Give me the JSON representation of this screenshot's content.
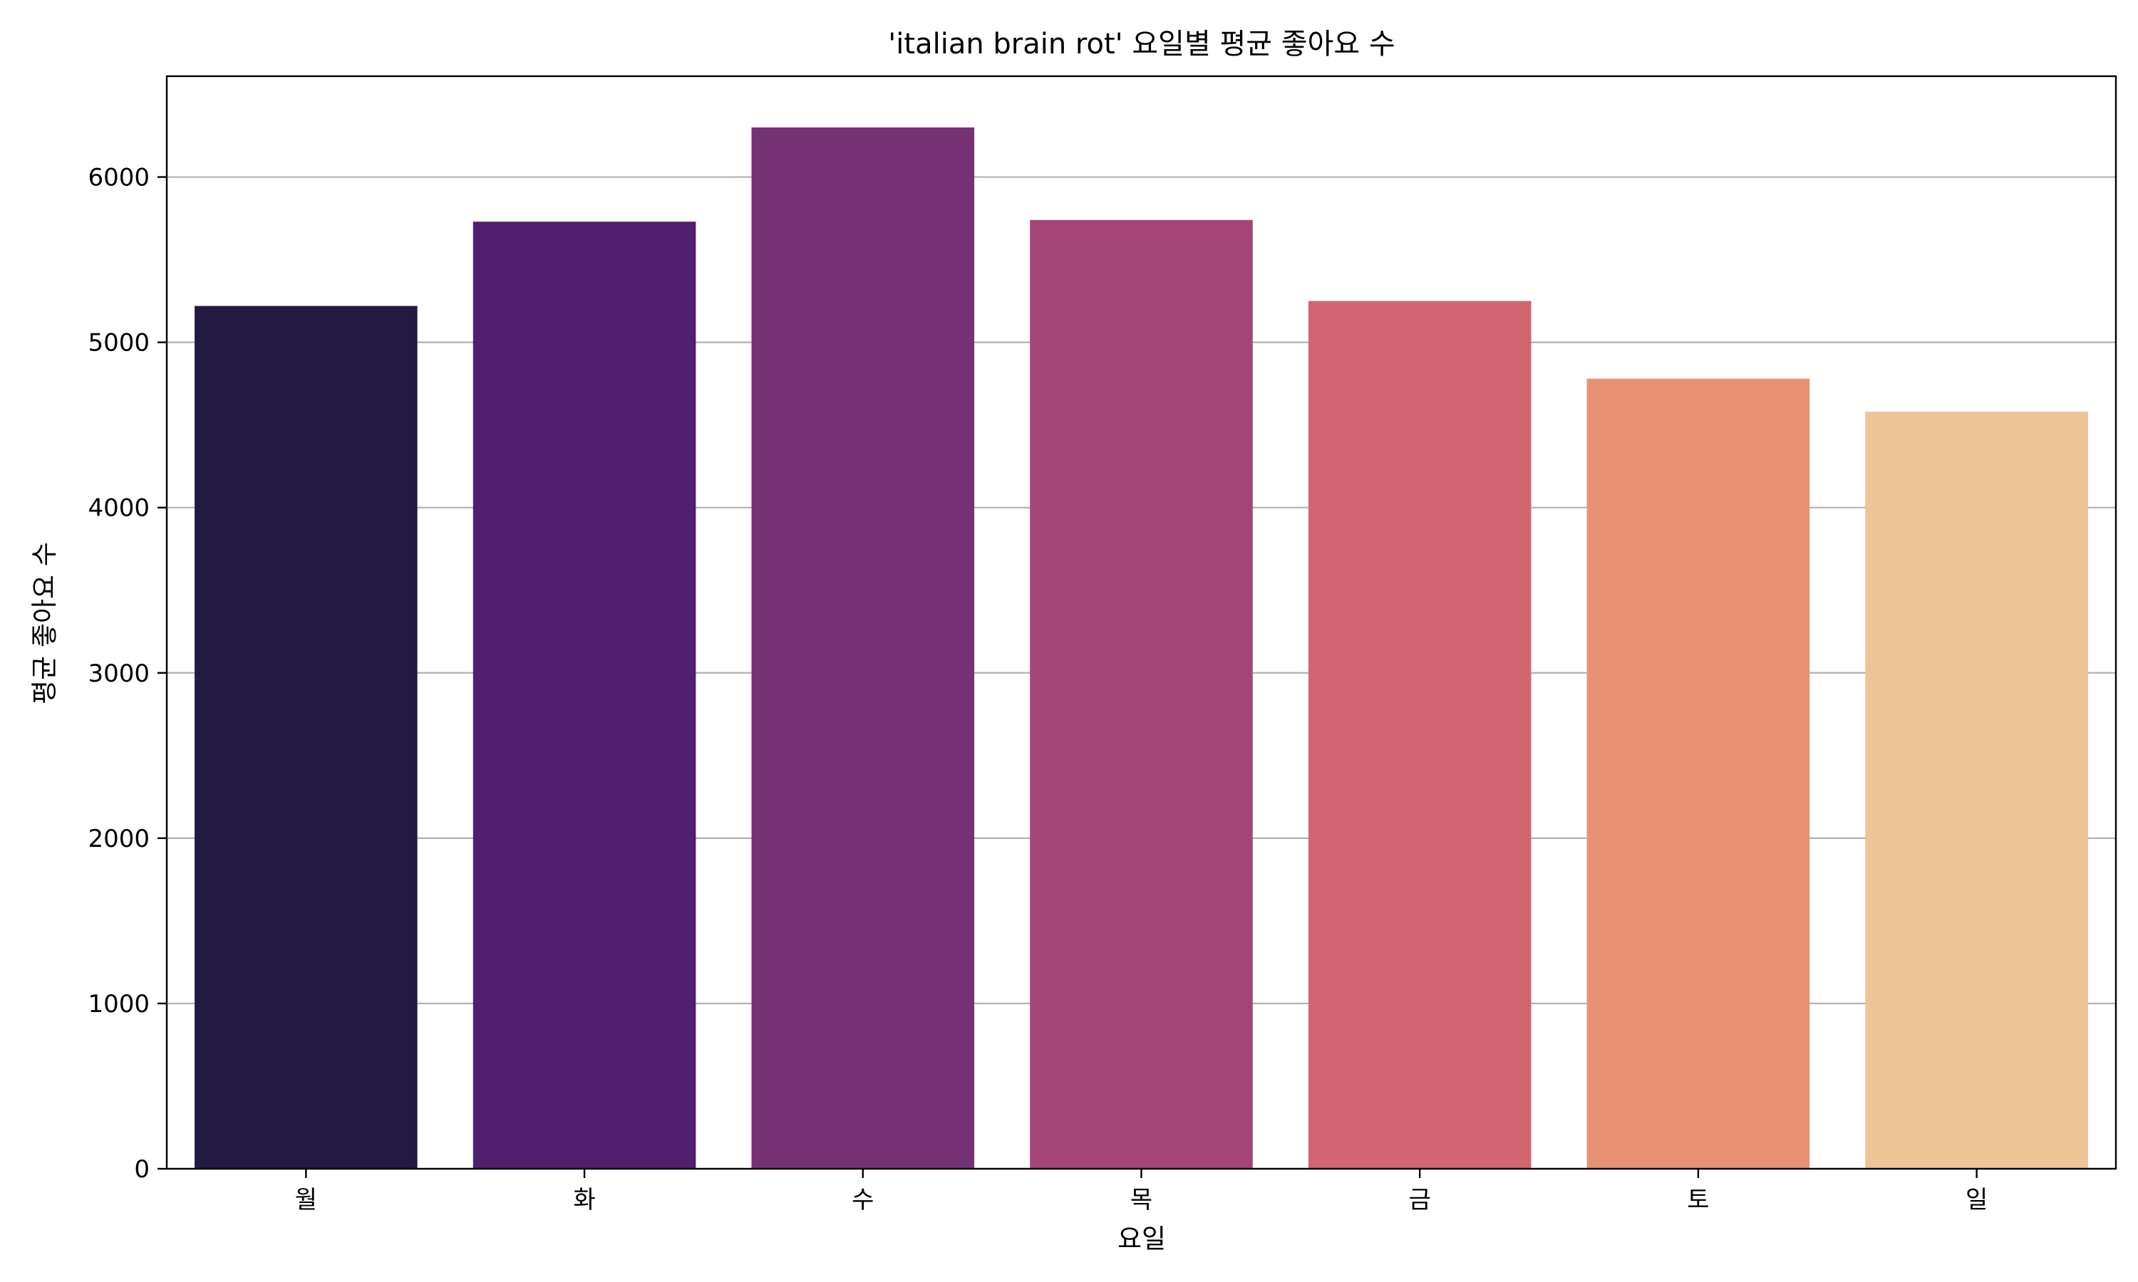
{
  "chart_data": {
    "type": "bar",
    "title": "'italian brain rot' 요일별 평균 좋아요 수",
    "xlabel": "요일",
    "ylabel": "평균 좋아요 수",
    "categories": [
      "월",
      "화",
      "수",
      "목",
      "금",
      "토",
      "일"
    ],
    "values": [
      5220,
      5730,
      6300,
      5740,
      5250,
      4780,
      4580
    ],
    "ylim": [
      0,
      6610
    ],
    "yticks": [
      0,
      1000,
      2000,
      3000,
      4000,
      5000,
      6000
    ],
    "ytick_labels": [
      "0",
      "1000",
      "2000",
      "3000",
      "4000",
      "5000",
      "6000"
    ],
    "grid": "horizontal",
    "colors": [
      "#221a42",
      "#501f6d",
      "#773275",
      "#a54576",
      "#d36570",
      "#e79275",
      "#efc497"
    ],
    "grid_color": "#b0b0b0"
  }
}
